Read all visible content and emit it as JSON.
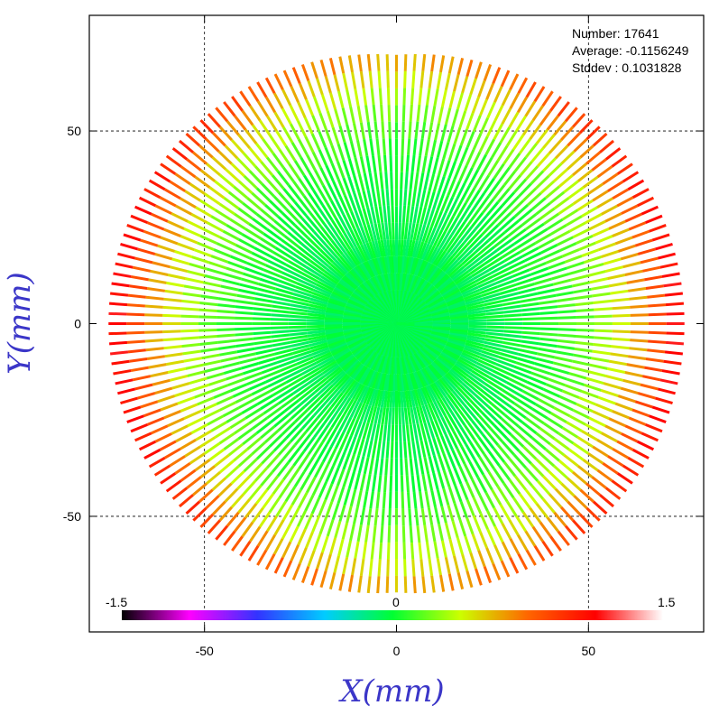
{
  "chart_data": {
    "type": "scatter",
    "subtype": "radial-map",
    "xlabel": "X(mm)",
    "ylabel": "Y(mm)",
    "xlim": [
      -80,
      80
    ],
    "ylim": [
      -80,
      80
    ],
    "grid": true,
    "xticks": [
      {
        "value": -50,
        "label": "-50"
      },
      {
        "value": 0,
        "label": "0"
      },
      {
        "value": 50,
        "label": "50"
      }
    ],
    "yticks": [
      {
        "value": 50,
        "label": "50"
      },
      {
        "value": 0,
        "label": "0"
      },
      {
        "value": -50,
        "label": "-50"
      }
    ],
    "stats": {
      "number": "Number: 17641",
      "average": "Average: -0.1156249",
      "stddev": "Stddev : 0.1031828"
    },
    "colorbar": {
      "min_label": "-1.5",
      "mid_label": "0",
      "max_label": "1.5",
      "min": -1.5,
      "max": 1.5,
      "stops": [
        "#000000",
        "#ff00ff",
        "#3333ff",
        "#00ccff",
        "#00ff33",
        "#ccff00",
        "#ff6600",
        "#ff0000",
        "#ffffff"
      ]
    },
    "pattern": {
      "spokes": 180,
      "max_radius_mm": 75,
      "center_value": 0.0,
      "edge_value": 1.2
    }
  }
}
